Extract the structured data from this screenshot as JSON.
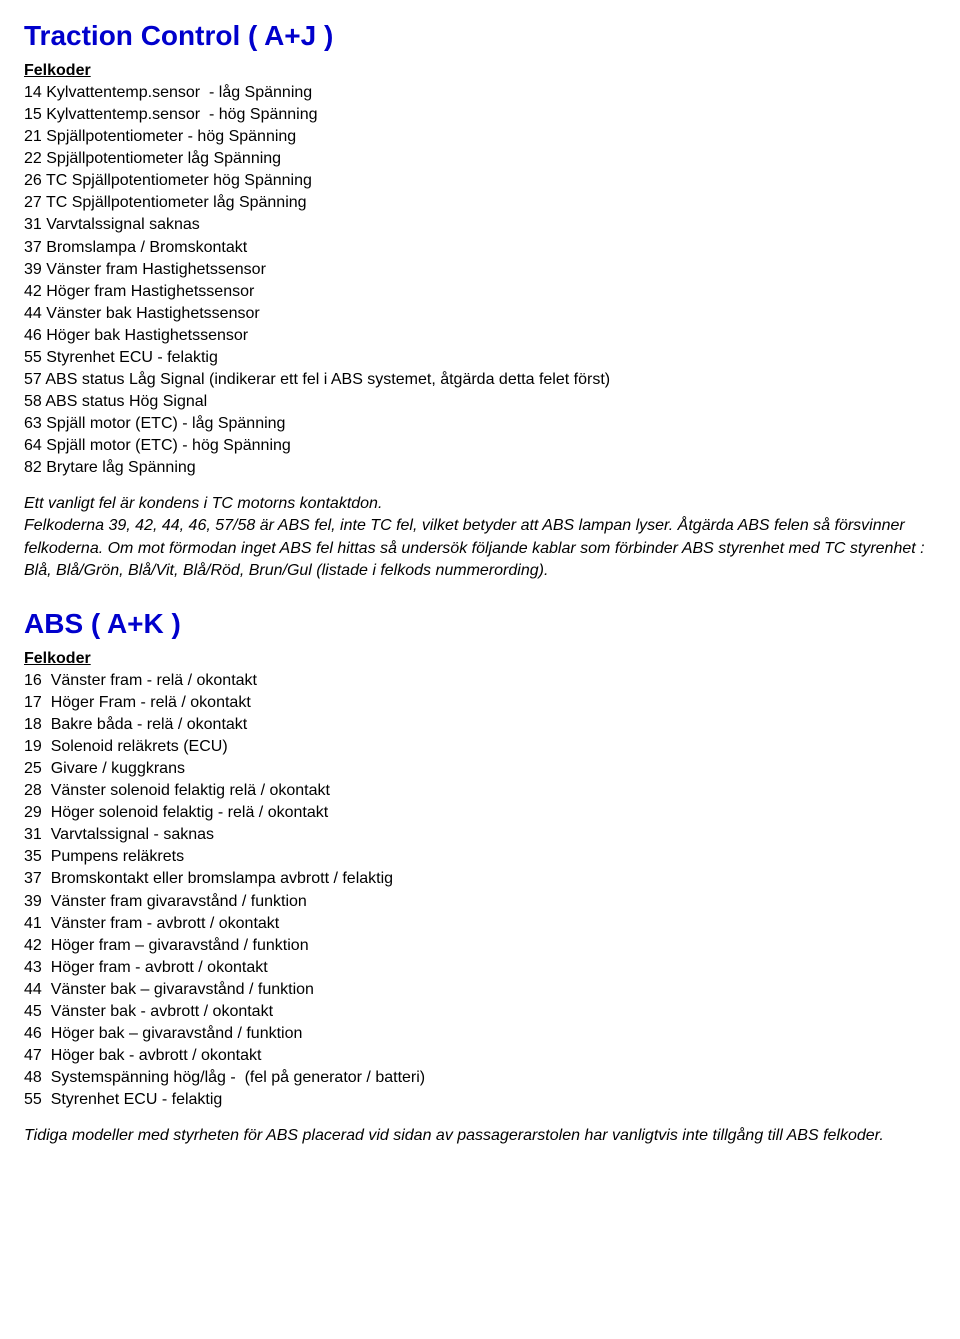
{
  "colors": {
    "heading": "#0000cc",
    "text": "#000000",
    "background": "#ffffff"
  },
  "typography": {
    "family": "Arial",
    "body_size_pt": 12,
    "heading_size_pt": 21,
    "heading_weight": "bold"
  },
  "section1": {
    "title": "Traction Control  ( A+J )",
    "sub": "Felkoder",
    "codes": [
      "14 Kylvattentemp.sensor  - låg Spänning",
      "15 Kylvattentemp.sensor  - hög Spänning",
      "21 Spjällpotentiometer - hög Spänning",
      "22 Spjällpotentiometer låg Spänning",
      "26 TC Spjällpotentiometer hög Spänning",
      "27 TC Spjällpotentiometer låg Spänning",
      "31 Varvtalssignal saknas",
      "37 Bromslampa / Bromskontakt",
      "39 Vänster fram Hastighetssensor",
      "42 Höger fram Hastighetssensor",
      "44 Vänster bak Hastighetssensor",
      "46 Höger bak Hastighetssensor",
      "55 Styrenhet ECU - felaktig",
      "57 ABS status Låg Signal (indikerar ett fel i ABS systemet, åtgärda detta felet först)",
      "58 ABS status Hög Signal",
      "63 Spjäll motor (ETC) - låg Spänning",
      "64 Spjäll motor (ETC) - hög Spänning",
      "82 Brytare låg Spänning"
    ],
    "note_lines": [
      "Ett vanligt fel är kondens i TC motorns kontaktdon.",
      "Felkoderna 39, 42, 44, 46, 57/58 är ABS fel, inte TC fel, vilket betyder att ABS lampan lyser. Åtgärda ABS felen så försvinner felkoderna. Om mot förmodan inget ABS fel hittas så undersök följande kablar som förbinder ABS styrenhet med TC styrenhet : Blå, Blå/Grön, Blå/Vit, Blå/Röd, Brun/Gul (listade i felkods nummerording)."
    ]
  },
  "section2": {
    "title": "ABS  ( A+K )",
    "sub": "Felkoder",
    "codes": [
      "16  Vänster fram - relä / okontakt",
      "17  Höger Fram - relä / okontakt",
      "18  Bakre båda - relä / okontakt",
      "19  Solenoid reläkrets (ECU)",
      "25  Givare / kuggkrans",
      "28  Vänster solenoid felaktig relä / okontakt",
      "29  Höger solenoid felaktig - relä / okontakt",
      "31  Varvtalssignal - saknas",
      "35  Pumpens reläkrets",
      "37  Bromskontakt eller bromslampa avbrott / felaktig",
      "39  Vänster fram givaravstånd / funktion",
      "41  Vänster fram - avbrott / okontakt",
      "42  Höger fram – givaravstånd / funktion",
      "43  Höger fram - avbrott / okontakt",
      "44  Vänster bak – givaravstånd / funktion",
      "45  Vänster bak - avbrott / okontakt",
      "46  Höger bak – givaravstånd / funktion",
      "47  Höger bak - avbrott / okontakt",
      "48  Systemspänning hög/låg -  (fel på generator / batteri)",
      "55  Styrenhet ECU - felaktig"
    ],
    "note_lines": [
      "Tidiga modeller med styrheten för ABS placerad vid sidan av passagerarstolen har vanligtvis inte tillgång till ABS felkoder."
    ]
  }
}
